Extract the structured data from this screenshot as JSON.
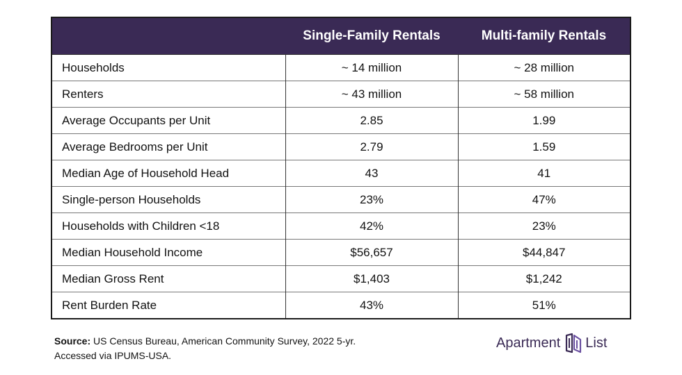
{
  "chart_data": {
    "type": "table",
    "columns": [
      "",
      "Single-Family Rentals",
      "Multi-family Rentals"
    ],
    "rows": [
      {
        "label": "Households",
        "values": [
          "~ 14 million",
          "~ 28 million"
        ]
      },
      {
        "label": "Renters",
        "values": [
          "~ 43 million",
          "~ 58 million"
        ]
      },
      {
        "label": "Average Occupants per Unit",
        "values": [
          "2.85",
          "1.99"
        ]
      },
      {
        "label": "Average Bedrooms per Unit",
        "values": [
          "2.79",
          "1.59"
        ]
      },
      {
        "label": "Median Age of Household Head",
        "values": [
          "43",
          "41"
        ]
      },
      {
        "label": "Single-person Households",
        "values": [
          "23%",
          "47%"
        ]
      },
      {
        "label": "Households with Children <18",
        "values": [
          "42%",
          "23%"
        ]
      },
      {
        "label": "Median Household Income",
        "values": [
          "$56,657",
          "$44,847"
        ]
      },
      {
        "label": "Median Gross Rent",
        "values": [
          "$1,403",
          "$1,242"
        ]
      },
      {
        "label": "Rent Burden Rate",
        "values": [
          "43%",
          "51%"
        ]
      }
    ]
  },
  "source": {
    "label": "Source:",
    "line1": "US Census Bureau, American Community Survey, 2022 5-yr.",
    "line2": "Accessed via IPUMS-USA."
  },
  "logo": {
    "text_left": "Apartment",
    "text_right": "List",
    "icon": "apartment-list-logo-icon",
    "color": "#3a2a55"
  },
  "colors": {
    "header_bg": "#3a2a55",
    "header_text": "#ffffff"
  }
}
